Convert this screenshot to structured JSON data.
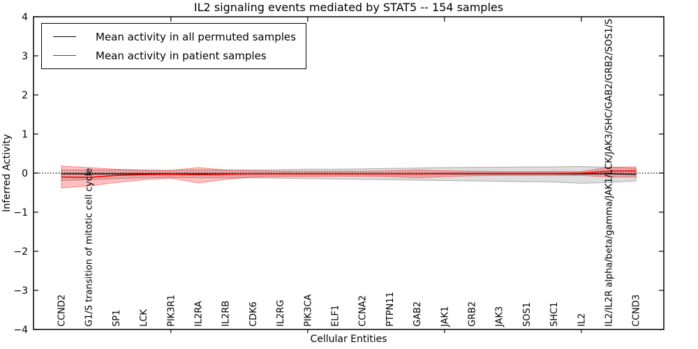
{
  "figure": {
    "title": "IL2 signaling events mediated by STAT5 -- 154 samples",
    "xlabel": "Cellular Entities",
    "ylabel": "Inferred Activity"
  },
  "chart_data": {
    "type": "line",
    "title": "IL2 signaling events mediated by STAT5 -- 154 samples",
    "xlabel": "Cellular Entities",
    "ylabel": "Inferred Activity",
    "ylim": [
      -4,
      4
    ],
    "yticks": [
      -4,
      -3,
      -2,
      -1,
      0,
      1,
      2,
      3,
      4
    ],
    "xtick_visible_indices": [
      4,
      9,
      14,
      19
    ],
    "grid": false,
    "legend_position": "upper left",
    "reference_line": {
      "y": 0,
      "style": "dotted",
      "color": "#000000"
    },
    "categories": [
      "CCND2",
      "G1/S transition of mitotic cell cycle",
      "SP1",
      "LCK",
      "PIK3R1",
      "IL2RA",
      "IL2RB",
      "CDK6",
      "IL2RG",
      "PIK3CA",
      "ELF1",
      "CCNA2",
      "PTPN11",
      "GAB2",
      "JAK1",
      "GRB2",
      "JAK3",
      "SOS1",
      "SHC1",
      "IL2",
      "IL2/IL2R alpha/beta/gamma/JAK1/LCK/JAK3/SHC/GAB2/GRB2/SOS1/S",
      "CCND3"
    ],
    "series": [
      {
        "name": "Mean activity in all permuted samples",
        "color": "#000000",
        "band_color": "#000000",
        "band_opacity": 0.13,
        "values": [
          -0.02,
          -0.02,
          -0.02,
          -0.02,
          -0.02,
          -0.02,
          -0.02,
          -0.02,
          -0.02,
          -0.02,
          -0.02,
          -0.02,
          -0.02,
          -0.02,
          -0.02,
          -0.02,
          -0.02,
          -0.02,
          -0.02,
          -0.02,
          -0.02,
          -0.03
        ],
        "band_upper": [
          0.08,
          0.08,
          0.08,
          0.07,
          0.07,
          0.08,
          0.08,
          0.08,
          0.09,
          0.1,
          0.1,
          0.11,
          0.12,
          0.13,
          0.14,
          0.15,
          0.15,
          0.16,
          0.16,
          0.17,
          0.15,
          0.12
        ],
        "band_lower": [
          -0.19,
          -0.17,
          -0.14,
          -0.12,
          -0.11,
          -0.12,
          -0.12,
          -0.12,
          -0.13,
          -0.14,
          -0.15,
          -0.16,
          -0.17,
          -0.18,
          -0.19,
          -0.2,
          -0.21,
          -0.22,
          -0.23,
          -0.26,
          -0.24,
          -0.2
        ]
      },
      {
        "name": "Mean activity in patient samples",
        "color": "#ff0000",
        "band_color": "#ff0000",
        "band_opacity": 0.25,
        "values": [
          -0.1,
          -0.11,
          -0.06,
          -0.04,
          -0.03,
          -0.04,
          -0.03,
          -0.02,
          -0.02,
          -0.02,
          -0.02,
          -0.02,
          -0.02,
          -0.02,
          -0.01,
          -0.01,
          -0.01,
          -0.01,
          -0.01,
          0.0,
          0.05,
          0.06
        ],
        "band_upper": [
          0.18,
          0.14,
          0.1,
          0.08,
          0.07,
          0.14,
          0.08,
          0.06,
          0.05,
          0.05,
          0.05,
          0.05,
          0.06,
          0.08,
          0.06,
          0.05,
          0.04,
          0.04,
          0.04,
          0.04,
          0.15,
          0.16
        ],
        "band_lower": [
          -0.38,
          -0.33,
          -0.24,
          -0.17,
          -0.13,
          -0.25,
          -0.16,
          -0.1,
          -0.09,
          -0.09,
          -0.08,
          -0.08,
          -0.09,
          -0.12,
          -0.09,
          -0.07,
          -0.06,
          -0.06,
          -0.06,
          -0.06,
          -0.1,
          -0.1
        ]
      }
    ]
  }
}
